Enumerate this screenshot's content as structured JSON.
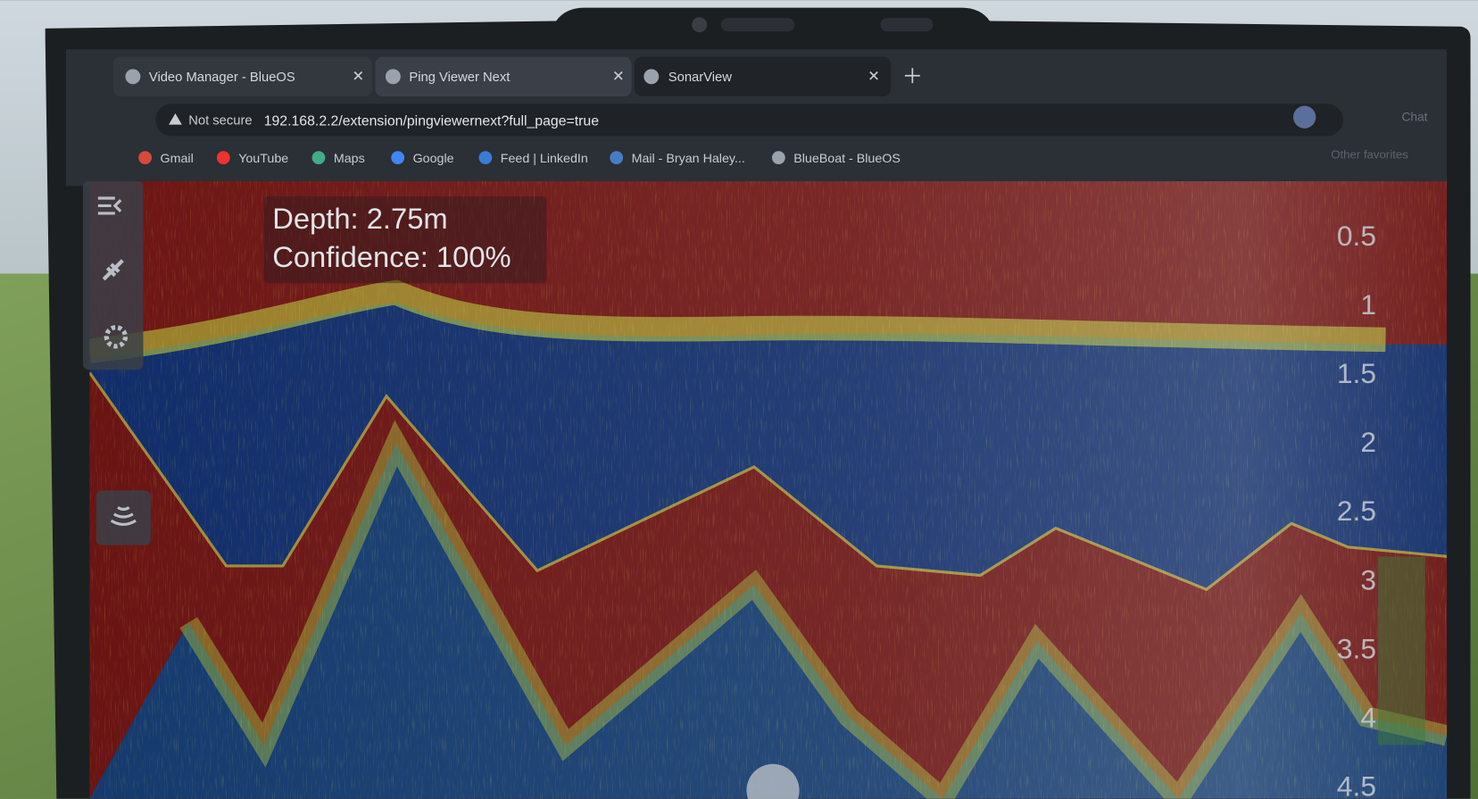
{
  "tabs": [
    {
      "title": "Video Manager - BlueOS"
    },
    {
      "title": "Ping Viewer Next"
    },
    {
      "title": "SonarView"
    }
  ],
  "address_bar": {
    "security": "Not secure",
    "url": "192.168.2.2/extension/pingviewernext?full_page=true"
  },
  "bookmarks": [
    "Gmail",
    "YouTube",
    "Maps",
    "Google",
    "Feed | LinkedIn",
    "Mail - Bryan Haley...",
    "BlueBoat - BlueOS"
  ],
  "other_favorites": "Other favorites",
  "profile_button": "Chat",
  "readout": {
    "depth": "Depth: 2.75m",
    "confidence": "Confidence: 100%"
  },
  "depth_scale": {
    "ticks": [
      0.5,
      1,
      1.5,
      2,
      2.5,
      3,
      3.5,
      4,
      4.5
    ]
  }
}
